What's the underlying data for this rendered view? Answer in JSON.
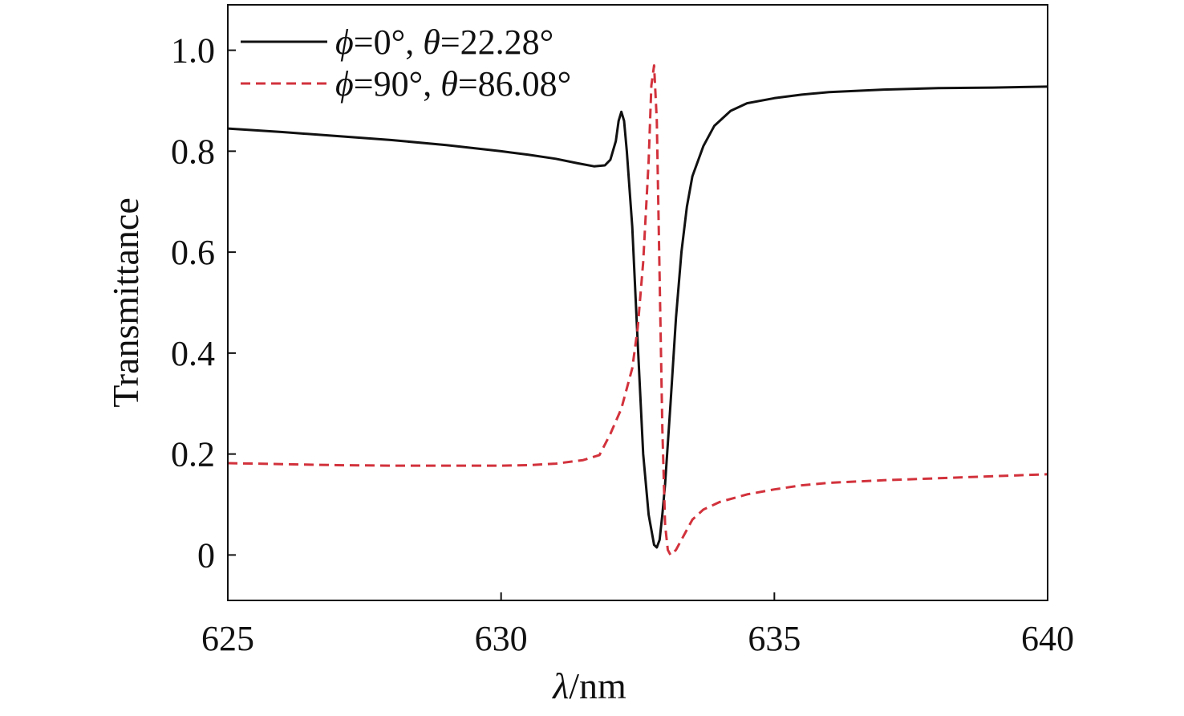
{
  "chart_data": {
    "type": "line",
    "title": "",
    "xlabel_symbol": "λ",
    "xlabel_unit": "/nm",
    "ylabel": "Transmittance",
    "xlim": [
      625,
      640
    ],
    "ylim": [
      -0.09,
      1.09
    ],
    "xticks": [
      625,
      630,
      635,
      640
    ],
    "xtick_labels": [
      "625",
      "630",
      "635",
      "640"
    ],
    "yticks": [
      0,
      0.2,
      0.4,
      0.6,
      0.8,
      1.0
    ],
    "ytick_labels": [
      "0",
      "0.2",
      "0.4",
      "0.6",
      "0.8",
      "1.0"
    ],
    "grid": false,
    "legend_position": "top-left",
    "series": [
      {
        "name": "ϕ=0°, θ=22.28°",
        "legend": {
          "phi_symbol": "ϕ",
          "phi_value": "=0°, ",
          "theta_symbol": "θ",
          "theta_value": "=22.28°"
        },
        "color": "#111111",
        "dash": "solid",
        "x": [
          625,
          626,
          627,
          628,
          629,
          630,
          630.5,
          631,
          631.4,
          631.7,
          631.9,
          632.0,
          632.1,
          632.15,
          632.2,
          632.25,
          632.3,
          632.4,
          632.5,
          632.6,
          632.7,
          632.8,
          632.85,
          632.9,
          632.95,
          633.0,
          633.1,
          633.2,
          633.3,
          633.4,
          633.5,
          633.7,
          633.9,
          634.2,
          634.5,
          635,
          635.5,
          636,
          637,
          638,
          639,
          640
        ],
        "y": [
          0.845,
          0.838,
          0.83,
          0.822,
          0.812,
          0.8,
          0.793,
          0.785,
          0.776,
          0.77,
          0.772,
          0.783,
          0.82,
          0.86,
          0.878,
          0.86,
          0.8,
          0.65,
          0.42,
          0.2,
          0.08,
          0.02,
          0.015,
          0.03,
          0.08,
          0.14,
          0.3,
          0.47,
          0.6,
          0.69,
          0.75,
          0.81,
          0.85,
          0.88,
          0.895,
          0.905,
          0.912,
          0.917,
          0.922,
          0.925,
          0.926,
          0.928
        ]
      },
      {
        "name": "ϕ=90°, θ=86.08°",
        "legend": {
          "phi_symbol": "ϕ",
          "phi_value": "=90°, ",
          "theta_symbol": "θ",
          "theta_value": "=86.08°"
        },
        "color": "#d2323c",
        "dash": "dashed",
        "x": [
          625,
          626,
          627,
          628,
          629,
          630,
          630.5,
          631,
          631.5,
          631.8,
          632.0,
          632.2,
          632.4,
          632.5,
          632.6,
          632.7,
          632.75,
          632.8,
          632.85,
          632.9,
          632.95,
          633.0,
          633.05,
          633.1,
          633.2,
          633.3,
          633.4,
          633.5,
          633.7,
          634,
          634.5,
          635,
          635.5,
          636,
          637,
          638,
          639,
          640
        ],
        "y": [
          0.182,
          0.18,
          0.178,
          0.177,
          0.177,
          0.177,
          0.178,
          0.181,
          0.188,
          0.198,
          0.24,
          0.29,
          0.37,
          0.45,
          0.58,
          0.78,
          0.93,
          0.97,
          0.86,
          0.55,
          0.25,
          0.06,
          0.01,
          0.0,
          0.01,
          0.03,
          0.05,
          0.07,
          0.09,
          0.105,
          0.12,
          0.13,
          0.138,
          0.143,
          0.148,
          0.152,
          0.156,
          0.16
        ]
      }
    ]
  }
}
